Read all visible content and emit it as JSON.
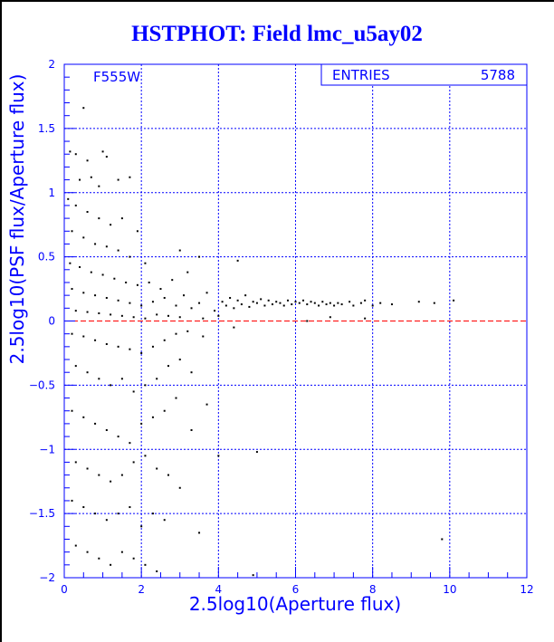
{
  "chart_data": {
    "type": "scatter",
    "title": "HSTPHOT: Field lmc_u5ay02",
    "xlabel": "2.5log10(Aperture flux)",
    "ylabel": "2.5log10(PSF flux/Aperture flux)",
    "xlim": [
      0,
      12
    ],
    "ylim": [
      -2,
      2
    ],
    "xticks": [
      "0",
      "2",
      "4",
      "6",
      "8",
      "10",
      "12"
    ],
    "yticks": [
      "-2",
      "-1.5",
      "-1",
      "-0.5",
      "0",
      "0.5",
      "1",
      "1.5",
      "2"
    ],
    "grid": true,
    "reference_line_y": 0,
    "annotation": "F555W",
    "stats": {
      "label": "ENTRIES",
      "value": "5788"
    },
    "colors": {
      "axes": "#0000ff",
      "points": "#000000",
      "reference_line": "#ff0000",
      "grid": "#0000ff"
    },
    "points_note_sample": true,
    "points": [
      [
        0.5,
        1.66
      ],
      [
        0.15,
        1.32
      ],
      [
        0.3,
        1.3
      ],
      [
        0.6,
        1.25
      ],
      [
        1.0,
        1.32
      ],
      [
        1.1,
        1.28
      ],
      [
        0.4,
        1.1
      ],
      [
        0.7,
        1.12
      ],
      [
        0.9,
        1.05
      ],
      [
        1.4,
        1.1
      ],
      [
        1.7,
        1.12
      ],
      [
        0.1,
        0.95
      ],
      [
        0.3,
        0.9
      ],
      [
        0.6,
        0.85
      ],
      [
        0.9,
        0.8
      ],
      [
        1.2,
        0.75
      ],
      [
        1.5,
        0.8
      ],
      [
        1.9,
        0.7
      ],
      [
        0.2,
        0.7
      ],
      [
        0.5,
        0.65
      ],
      [
        0.8,
        0.6
      ],
      [
        1.1,
        0.58
      ],
      [
        1.4,
        0.55
      ],
      [
        1.7,
        0.5
      ],
      [
        2.1,
        0.45
      ],
      [
        0.15,
        0.45
      ],
      [
        0.4,
        0.42
      ],
      [
        0.7,
        0.38
      ],
      [
        1.0,
        0.36
      ],
      [
        1.3,
        0.33
      ],
      [
        1.6,
        0.3
      ],
      [
        1.9,
        0.28
      ],
      [
        2.2,
        0.3
      ],
      [
        2.5,
        0.25
      ],
      [
        2.8,
        0.32
      ],
      [
        3.0,
        0.55
      ],
      [
        3.5,
        0.5
      ],
      [
        3.2,
        0.38
      ],
      [
        4.5,
        0.47
      ],
      [
        0.2,
        0.25
      ],
      [
        0.5,
        0.22
      ],
      [
        0.8,
        0.2
      ],
      [
        1.1,
        0.18
      ],
      [
        1.4,
        0.16
      ],
      [
        1.7,
        0.14
      ],
      [
        2.0,
        0.12
      ],
      [
        2.3,
        0.15
      ],
      [
        2.6,
        0.18
      ],
      [
        2.9,
        0.12
      ],
      [
        3.1,
        0.2
      ],
      [
        3.3,
        0.1
      ],
      [
        3.5,
        0.14
      ],
      [
        3.7,
        0.22
      ],
      [
        3.9,
        0.08
      ],
      [
        0.3,
        0.08
      ],
      [
        0.6,
        0.07
      ],
      [
        0.9,
        0.06
      ],
      [
        1.2,
        0.05
      ],
      [
        1.5,
        0.04
      ],
      [
        1.8,
        0.03
      ],
      [
        2.1,
        0.02
      ],
      [
        2.4,
        0.05
      ],
      [
        2.7,
        0.04
      ],
      [
        3.0,
        0.03
      ],
      [
        3.6,
        0.02
      ],
      [
        4.0,
        0.04
      ],
      [
        4.1,
        0.15
      ],
      [
        4.2,
        0.12
      ],
      [
        4.3,
        0.18
      ],
      [
        4.4,
        0.1
      ],
      [
        4.5,
        0.16
      ],
      [
        4.6,
        0.13
      ],
      [
        4.7,
        0.2
      ],
      [
        4.8,
        0.11
      ],
      [
        4.9,
        0.15
      ],
      [
        5.0,
        0.14
      ],
      [
        5.1,
        0.17
      ],
      [
        5.2,
        0.12
      ],
      [
        5.3,
        0.16
      ],
      [
        5.4,
        0.13
      ],
      [
        5.5,
        0.15
      ],
      [
        5.6,
        0.14
      ],
      [
        5.7,
        0.12
      ],
      [
        5.8,
        0.16
      ],
      [
        5.9,
        0.13
      ],
      [
        6.0,
        0.15
      ],
      [
        6.1,
        0.14
      ],
      [
        6.2,
        0.16
      ],
      [
        6.3,
        0.13
      ],
      [
        6.4,
        0.15
      ],
      [
        6.5,
        0.14
      ],
      [
        6.6,
        0.12
      ],
      [
        6.7,
        0.15
      ],
      [
        6.8,
        0.13
      ],
      [
        6.9,
        0.14
      ],
      [
        7.0,
        0.12
      ],
      [
        7.1,
        0.14
      ],
      [
        7.2,
        0.13
      ],
      [
        7.4,
        0.15
      ],
      [
        7.5,
        0.12
      ],
      [
        7.7,
        0.14
      ],
      [
        7.8,
        0.16
      ],
      [
        8.0,
        0.12
      ],
      [
        8.2,
        0.14
      ],
      [
        8.5,
        0.13
      ],
      [
        9.2,
        0.15
      ],
      [
        9.6,
        0.14
      ],
      [
        10.1,
        0.16
      ],
      [
        6.9,
        0.03
      ],
      [
        7.8,
        0.02
      ],
      [
        0.2,
        -0.1
      ],
      [
        0.5,
        -0.12
      ],
      [
        0.8,
        -0.15
      ],
      [
        1.1,
        -0.18
      ],
      [
        1.4,
        -0.2
      ],
      [
        1.7,
        -0.22
      ],
      [
        2.0,
        -0.25
      ],
      [
        2.3,
        -0.2
      ],
      [
        2.6,
        -0.15
      ],
      [
        2.9,
        -0.1
      ],
      [
        3.2,
        -0.08
      ],
      [
        3.6,
        -0.12
      ],
      [
        4.4,
        -0.05
      ],
      [
        6.3,
        0.0
      ],
      [
        0.3,
        -0.35
      ],
      [
        0.6,
        -0.4
      ],
      [
        0.9,
        -0.45
      ],
      [
        1.2,
        -0.5
      ],
      [
        1.5,
        -0.45
      ],
      [
        1.8,
        -0.55
      ],
      [
        2.1,
        -0.5
      ],
      [
        2.4,
        -0.45
      ],
      [
        2.7,
        -0.35
      ],
      [
        3.0,
        -0.3
      ],
      [
        3.3,
        -0.4
      ],
      [
        3.7,
        -0.65
      ],
      [
        0.2,
        -0.7
      ],
      [
        0.5,
        -0.75
      ],
      [
        0.8,
        -0.8
      ],
      [
        1.1,
        -0.85
      ],
      [
        1.4,
        -0.9
      ],
      [
        1.7,
        -0.95
      ],
      [
        2.0,
        -0.8
      ],
      [
        2.3,
        -0.75
      ],
      [
        2.6,
        -0.7
      ],
      [
        2.9,
        -0.6
      ],
      [
        3.3,
        -0.85
      ],
      [
        5.0,
        -1.02
      ],
      [
        4.0,
        -1.05
      ],
      [
        0.3,
        -1.1
      ],
      [
        0.6,
        -1.15
      ],
      [
        0.9,
        -1.2
      ],
      [
        1.2,
        -1.25
      ],
      [
        1.5,
        -1.2
      ],
      [
        1.8,
        -1.1
      ],
      [
        2.1,
        -1.05
      ],
      [
        2.4,
        -1.15
      ],
      [
        2.7,
        -1.2
      ],
      [
        3.0,
        -1.3
      ],
      [
        0.2,
        -1.4
      ],
      [
        0.5,
        -1.45
      ],
      [
        0.8,
        -1.5
      ],
      [
        1.1,
        -1.55
      ],
      [
        1.4,
        -1.5
      ],
      [
        1.7,
        -1.45
      ],
      [
        2.0,
        -1.6
      ],
      [
        2.3,
        -1.5
      ],
      [
        2.6,
        -1.55
      ],
      [
        3.5,
        -1.65
      ],
      [
        0.3,
        -1.75
      ],
      [
        0.6,
        -1.8
      ],
      [
        0.9,
        -1.85
      ],
      [
        1.2,
        -1.9
      ],
      [
        1.5,
        -1.8
      ],
      [
        1.8,
        -1.85
      ],
      [
        2.1,
        -1.9
      ],
      [
        2.4,
        -1.95
      ],
      [
        4.9,
        -1.98
      ],
      [
        9.8,
        -1.7
      ]
    ]
  }
}
